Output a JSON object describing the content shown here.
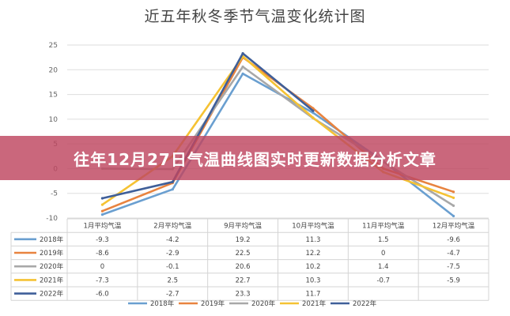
{
  "title": "近五年秋冬季节气温变化统计图",
  "banner": "往年12月27日气温曲线图实时更新数据分析文章",
  "chart_data": {
    "type": "line",
    "title": "近五年秋冬季节气温变化统计图",
    "categories": [
      "1月平均气温",
      "2月平均气温",
      "9月平均气温",
      "10月平均气温",
      "11月平均气温",
      "12月平均气温"
    ],
    "ylim": [
      -10,
      25
    ],
    "yticks": [
      -10,
      -5,
      0,
      5,
      10,
      15,
      20,
      25
    ],
    "grid": true,
    "legend_position": "bottom",
    "series": [
      {
        "name": "2018年",
        "color": "#6a9fd0",
        "values": [
          -9.3,
          -4.2,
          19.2,
          11.3,
          1.5,
          -9.6
        ]
      },
      {
        "name": "2019年",
        "color": "#e8833f",
        "values": [
          -8.6,
          -2.9,
          22.5,
          12.2,
          0,
          -4.7
        ]
      },
      {
        "name": "2020年",
        "color": "#a8a8a8",
        "values": [
          0,
          -0.1,
          20.6,
          10.2,
          1.4,
          -7.5
        ]
      },
      {
        "name": "2021年",
        "color": "#f5c233",
        "values": [
          -7.3,
          2.5,
          22.7,
          10.3,
          -0.7,
          -5.9
        ]
      },
      {
        "name": "2022年",
        "color": "#3f5f99",
        "values": [
          -6.0,
          -2.7,
          23.3,
          11.7,
          null,
          null
        ]
      }
    ]
  }
}
